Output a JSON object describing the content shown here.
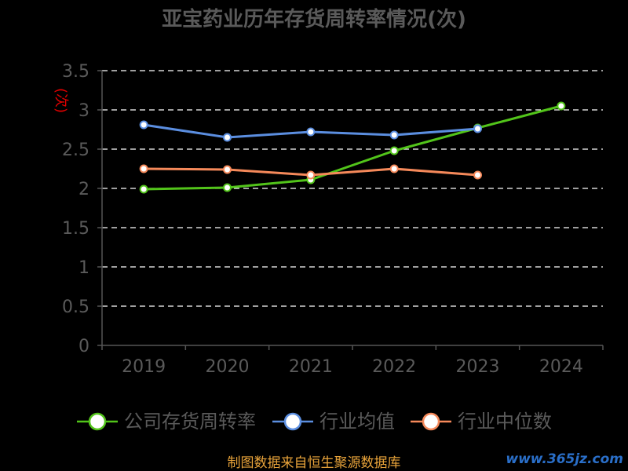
{
  "chart_data": {
    "type": "line",
    "title": "亚宝药业历年存货周转率情况(次)",
    "ylabel": "(次)",
    "xlabel": "",
    "categories": [
      "2019",
      "2020",
      "2021",
      "2022",
      "2023",
      "2024"
    ],
    "ylim": [
      0,
      3.5
    ],
    "yticks": [
      "0",
      "0.5",
      "1",
      "1.5",
      "2",
      "2.5",
      "3",
      "3.5"
    ],
    "grid": true,
    "legend_position": "bottom",
    "series": [
      {
        "name": "公司存货周转率",
        "color": "#52c41a",
        "values": [
          1.99,
          2.01,
          2.11,
          2.48,
          2.77,
          3.05
        ]
      },
      {
        "name": "行业均值",
        "color": "#5b8ee0",
        "values": [
          2.81,
          2.65,
          2.72,
          2.68,
          2.76,
          null
        ]
      },
      {
        "name": "行业中位数",
        "color": "#f5895a",
        "values": [
          2.25,
          2.24,
          2.17,
          2.25,
          2.17,
          null
        ]
      }
    ]
  },
  "footer": {
    "source": "制图数据来自恒生聚源数据库",
    "watermark": "www.365jz.com"
  }
}
